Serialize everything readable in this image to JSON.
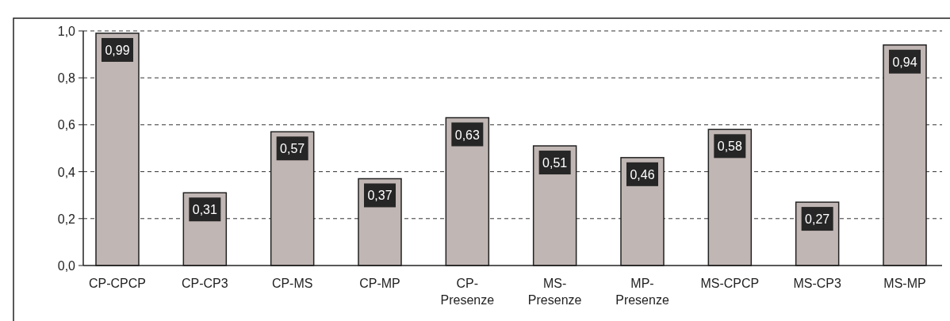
{
  "chart_data": {
    "type": "bar",
    "categories": [
      "CP-CPCP",
      "CP-CP3",
      "CP-MS",
      "CP-MP",
      "CP-Presenze",
      "MS-Presenze",
      "MP-Presenze",
      "MS-CPCP",
      "MS-CP3",
      "MS-MP"
    ],
    "values": [
      0.99,
      0.31,
      0.57,
      0.37,
      0.63,
      0.51,
      0.46,
      0.58,
      0.27,
      0.94
    ],
    "value_labels": [
      "0,99",
      "0,31",
      "0,57",
      "0,37",
      "0,63",
      "0,51",
      "0,46",
      "0,58",
      "0,27",
      "0,94"
    ],
    "color": "#c0b6b3",
    "ylim": [
      0,
      1
    ],
    "yticks": [
      {
        "value": 0,
        "label": "0,0"
      },
      {
        "value": 0.2,
        "label": "0,2"
      },
      {
        "value": 0.4,
        "label": "0,4"
      },
      {
        "value": 0.6,
        "label": "0,6"
      },
      {
        "value": 0.8,
        "label": "0,8"
      },
      {
        "value": 1,
        "label": "1,0"
      }
    ],
    "grid": "y"
  }
}
